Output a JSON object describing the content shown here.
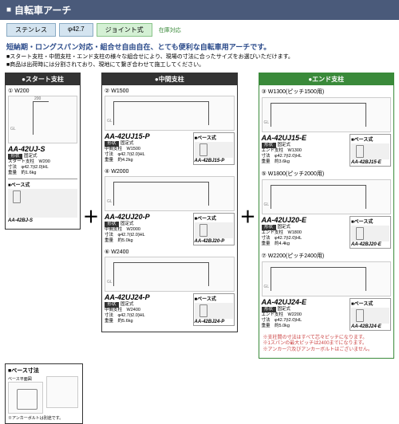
{
  "header": {
    "title": "自転車アーチ"
  },
  "tags": {
    "stainless": "ステンレス",
    "phi": "φ42.7",
    "joint": "ジョイント式",
    "stock": "在庫対応"
  },
  "lead": "短納期・ロングスパン対応・組合せ自由自在、とても便利な自転車用アーチです。",
  "desc1": "■スタート支柱・中間支柱・エンド支柱の様々な組合せにより、現場の寸法に合ったサイズをお選びいただけます。",
  "desc2": "■商品は出荷時には分割されており、現地にて繋ぎ合わせて施工してください。",
  "cols": {
    "start": {
      "title": "●スタート支柱"
    },
    "mid": {
      "title": "●中間支柱"
    },
    "end": {
      "title": "●エンド支柱"
    }
  },
  "start": {
    "num": "①",
    "w": "W200",
    "name": "AA-42UJ-S",
    "shape": "固定式",
    "spec1": "スタート支柱　W200",
    "spec2": "寸法　φ42.7(t2.0)HL",
    "spec3": "重量　約1.6kg",
    "base_title": "ベース式",
    "base_name": "AA-42BJ-S"
  },
  "mid_items": [
    {
      "num": "②",
      "w": "W1500",
      "name": "AA-42UJ15-P",
      "shape": "固定式",
      "spec1": "中間支柱　W1500",
      "spec2": "寸法　φ42.7(t2.0)HL",
      "spec3": "重量　約4.2kg",
      "base_name": "AA-42BJ15-P"
    },
    {
      "num": "④",
      "w": "W2000",
      "name": "AA-42UJ20-P",
      "shape": "固定式",
      "spec1": "中間支柱　W2000",
      "spec2": "寸法　φ42.7(t2.0)HL",
      "spec3": "重量　約5.0kg",
      "base_name": "AA-42BJ20-P"
    },
    {
      "num": "⑥",
      "w": "W2400",
      "name": "AA-42UJ24-P",
      "shape": "固定式",
      "spec1": "中間支柱　W2400",
      "spec2": "寸法　φ42.7(t2.0)HL",
      "spec3": "重量　約5.6kg",
      "base_name": "AA-42BJ24-P"
    }
  ],
  "end_items": [
    {
      "num": "③",
      "w": "W1300(ピッチ1500用)",
      "name": "AA-42UJ15-E",
      "shape": "固定式",
      "spec1": "エンド支柱　W1300",
      "spec2": "寸法　φ42.7(t2.0)HL",
      "spec3": "重量　約3.6kg",
      "base_name": "AA-42BJ15-E"
    },
    {
      "num": "⑤",
      "w": "W1800(ピッチ2000用)",
      "name": "AA-42UJ20-E",
      "shape": "固定式",
      "spec1": "エンド支柱　W1800",
      "spec2": "寸法　φ42.7(t2.0)HL",
      "spec3": "重量　約4.4kg",
      "base_name": "AA-42BJ20-E"
    },
    {
      "num": "⑦",
      "w": "W2200(ピッチ2400用)",
      "name": "AA-42UJ24-E",
      "shape": "固定式",
      "spec1": "エンド支柱　W2200",
      "spec2": "寸法　φ42.7(t2.0)HL",
      "spec3": "重量　約5.0kg",
      "base_name": "AA-42BJ24-E"
    }
  ],
  "base_dim": {
    "title": "ベース寸法",
    "plan_label": "ベース平面図",
    "dim1": "60",
    "dim2": "12×16",
    "dim3": "200",
    "note": "※アンカーボルトは別途です。"
  },
  "base_label": "ベース式",
  "notes": {
    "n1": "支柱間の寸法はすべて芯々ピッチになります。",
    "n2": "1スパンの最大ピッチは2400までになります。",
    "n3": "アンカー穴及びアンカーボルトはございません。"
  },
  "plus": "＋",
  "shape_label": "形状"
}
